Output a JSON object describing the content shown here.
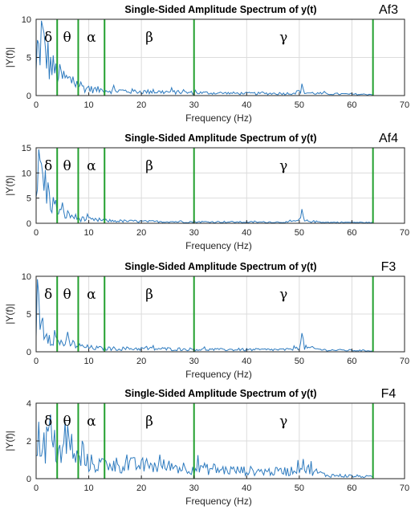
{
  "colors": {
    "spectrum": "#2e7bbf",
    "band_lines": "#22a02e",
    "grid": "#dcdcdc",
    "axes": "#262626"
  },
  "chart_data": [
    {
      "type": "line",
      "title": "Single-Sided Amplitude Spectrum of y(t)",
      "channel": "Af3",
      "xlabel": "Frequency (Hz)",
      "ylabel": "|Y(f)|",
      "xlim": [
        0,
        70
      ],
      "ylim": [
        0,
        10
      ],
      "xticks": [
        0,
        10,
        20,
        30,
        40,
        50,
        60,
        70
      ],
      "yticks": [
        0,
        5,
        10
      ],
      "grid": true,
      "band_boundaries": [
        4,
        8,
        13,
        30,
        64
      ],
      "bands": [
        {
          "symbol": "δ",
          "x": 2.3
        },
        {
          "symbol": "θ",
          "x": 5.9
        },
        {
          "symbol": "α",
          "x": 10.5
        },
        {
          "symbol": "β",
          "x": 21.5
        },
        {
          "symbol": "γ",
          "x": 47
        }
      ],
      "series": [
        {
          "points": [
            [
              0,
              3
            ],
            [
              0.5,
              6
            ],
            [
              1,
              8.5
            ],
            [
              1.5,
              6.5
            ],
            [
              2,
              6
            ],
            [
              2.5,
              4.5
            ],
            [
              3,
              4
            ],
            [
              4,
              3
            ],
            [
              5,
              2.6
            ],
            [
              6,
              2.2
            ],
            [
              7,
              2
            ],
            [
              8,
              1.6
            ],
            [
              9,
              1.2
            ],
            [
              10,
              0.9
            ],
            [
              12,
              0.8
            ],
            [
              15,
              0.7
            ],
            [
              20,
              0.55
            ],
            [
              25,
              0.5
            ],
            [
              30,
              0.4
            ],
            [
              35,
              0.35
            ],
            [
              40,
              0.3
            ],
            [
              45,
              0.3
            ],
            [
              48,
              0.3
            ],
            [
              50,
              0.5
            ],
            [
              50.5,
              1.1
            ],
            [
              51,
              0.4
            ],
            [
              55,
              0.25
            ],
            [
              60,
              0.2
            ],
            [
              64,
              0.15
            ]
          ]
        }
      ]
    },
    {
      "type": "line",
      "title": "Single-Sided Amplitude Spectrum of y(t)",
      "channel": "Af4",
      "xlabel": "Frequency (Hz)",
      "ylabel": "|Y(f)|",
      "xlim": [
        0,
        70
      ],
      "ylim": [
        0,
        15
      ],
      "xticks": [
        0,
        10,
        20,
        30,
        40,
        50,
        60,
        70
      ],
      "yticks": [
        0,
        5,
        10,
        15
      ],
      "grid": true,
      "band_boundaries": [
        4,
        8,
        13,
        30,
        64
      ],
      "bands": [
        {
          "symbol": "δ",
          "x": 2.3
        },
        {
          "symbol": "θ",
          "x": 5.9
        },
        {
          "symbol": "α",
          "x": 10.5
        },
        {
          "symbol": "β",
          "x": 21.5
        },
        {
          "symbol": "γ",
          "x": 47
        }
      ],
      "series": [
        {
          "points": [
            [
              0,
              6
            ],
            [
              0.5,
              13
            ],
            [
              1,
              11
            ],
            [
              1.5,
              9
            ],
            [
              2,
              7
            ],
            [
              3,
              4.5
            ],
            [
              4,
              3
            ],
            [
              5,
              2
            ],
            [
              6,
              1.8
            ],
            [
              7,
              1.5
            ],
            [
              8,
              1
            ],
            [
              10,
              0.8
            ],
            [
              12,
              0.6
            ],
            [
              15,
              0.5
            ],
            [
              20,
              0.4
            ],
            [
              25,
              0.35
            ],
            [
              30,
              0.3
            ],
            [
              35,
              0.3
            ],
            [
              40,
              0.25
            ],
            [
              45,
              0.25
            ],
            [
              48,
              0.25
            ],
            [
              50,
              0.6
            ],
            [
              50.5,
              1.6
            ],
            [
              51,
              0.5
            ],
            [
              55,
              0.2
            ],
            [
              60,
              0.2
            ],
            [
              64,
              0.15
            ]
          ]
        }
      ]
    },
    {
      "type": "line",
      "title": "Single-Sided Amplitude Spectrum of y(t)",
      "channel": "F3",
      "xlabel": "Frequency (Hz)",
      "ylabel": "|Y(f)|",
      "xlim": [
        0,
        70
      ],
      "ylim": [
        0,
        10
      ],
      "xticks": [
        0,
        10,
        20,
        30,
        40,
        50,
        60,
        70
      ],
      "yticks": [
        0,
        5,
        10
      ],
      "grid": true,
      "band_boundaries": [
        4,
        8,
        13,
        30,
        64
      ],
      "bands": [
        {
          "symbol": "δ",
          "x": 2.3
        },
        {
          "symbol": "θ",
          "x": 5.9
        },
        {
          "symbol": "α",
          "x": 10.5
        },
        {
          "symbol": "β",
          "x": 21.5
        },
        {
          "symbol": "γ",
          "x": 47
        }
      ],
      "series": [
        {
          "points": [
            [
              0,
              4
            ],
            [
              0.3,
              7.5
            ],
            [
              0.8,
              5
            ],
            [
              1.5,
              3.5
            ],
            [
              2,
              3
            ],
            [
              3,
              2.2
            ],
            [
              4,
              1.5
            ],
            [
              5,
              1.3
            ],
            [
              6,
              1.2
            ],
            [
              7,
              1.1
            ],
            [
              8,
              0.8
            ],
            [
              10,
              0.6
            ],
            [
              12,
              0.5
            ],
            [
              15,
              0.45
            ],
            [
              20,
              0.45
            ],
            [
              25,
              0.4
            ],
            [
              30,
              0.35
            ],
            [
              35,
              0.3
            ],
            [
              40,
              0.3
            ],
            [
              45,
              0.3
            ],
            [
              48,
              0.3
            ],
            [
              50,
              0.8
            ],
            [
              50.4,
              2.4
            ],
            [
              51,
              0.6
            ],
            [
              55,
              0.25
            ],
            [
              60,
              0.2
            ],
            [
              64,
              0.15
            ]
          ]
        }
      ]
    },
    {
      "type": "line",
      "title": "Single-Sided Amplitude Spectrum of y(t)",
      "channel": "F4",
      "xlabel": "Frequency (Hz)",
      "ylabel": "|Y(f)|",
      "xlim": [
        0,
        70
      ],
      "ylim": [
        0,
        4
      ],
      "xticks": [
        0,
        10,
        20,
        30,
        40,
        50,
        60,
        70
      ],
      "yticks": [
        0,
        2,
        4
      ],
      "grid": true,
      "band_boundaries": [
        4,
        8,
        13,
        30,
        64
      ],
      "bands": [
        {
          "symbol": "δ",
          "x": 2.3
        },
        {
          "symbol": "θ",
          "x": 5.9
        },
        {
          "symbol": "α",
          "x": 10.5
        },
        {
          "symbol": "β",
          "x": 21.5
        },
        {
          "symbol": "γ",
          "x": 47
        }
      ],
      "series": [
        {
          "points": [
            [
              0,
              1
            ],
            [
              0.5,
              2.2
            ],
            [
              1,
              2.5
            ],
            [
              1.5,
              2
            ],
            [
              2,
              2
            ],
            [
              2.5,
              2.9
            ],
            [
              3,
              2
            ],
            [
              4,
              1.6
            ],
            [
              5,
              1.5
            ],
            [
              6,
              1.6
            ],
            [
              6.5,
              2.2
            ],
            [
              7,
              1.3
            ],
            [
              8,
              1.1
            ],
            [
              10,
              0.9
            ],
            [
              12,
              0.8
            ],
            [
              15,
              0.8
            ],
            [
              20,
              0.75
            ],
            [
              25,
              0.7
            ],
            [
              30,
              0.6
            ],
            [
              35,
              0.5
            ],
            [
              40,
              0.45
            ],
            [
              45,
              0.4
            ],
            [
              48,
              0.4
            ],
            [
              50,
              0.7
            ],
            [
              50.5,
              1.3
            ],
            [
              51,
              0.6
            ],
            [
              55,
              0.2
            ],
            [
              60,
              0.15
            ],
            [
              64,
              0.1
            ]
          ]
        }
      ]
    }
  ]
}
